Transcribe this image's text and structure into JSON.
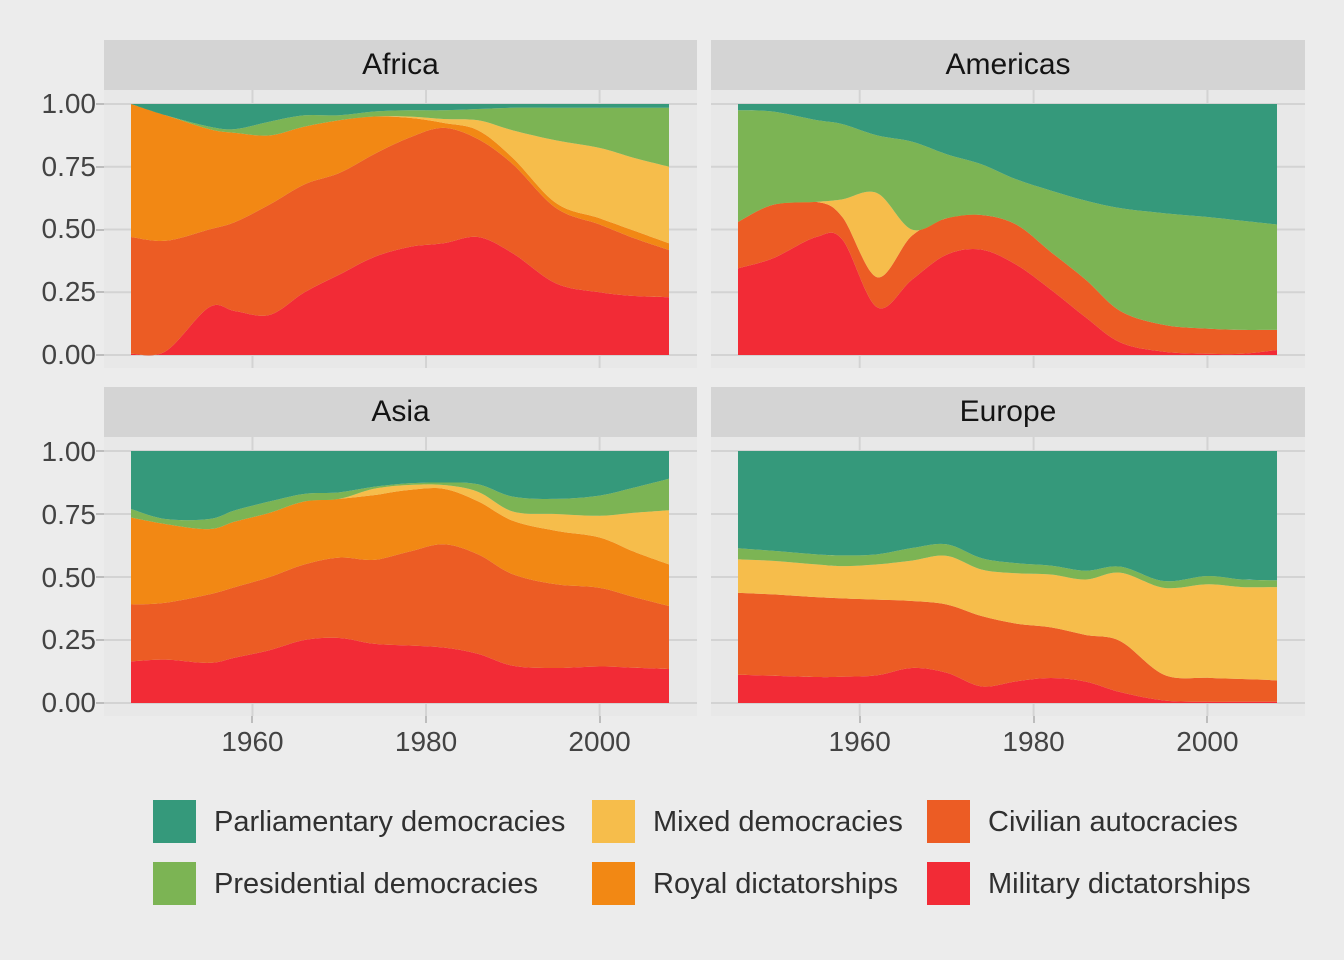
{
  "figure": {
    "background": "#ECECEC",
    "panel_background": "#E8E8E8",
    "gridline_color": "#D3D3D3",
    "strip_background": "#D4D4D4",
    "tick_color": "#BDBDBD"
  },
  "axes": {
    "x_tick_labels": [
      "1960",
      "1980",
      "2000"
    ],
    "x_tick_years": [
      1960,
      1980,
      2000
    ],
    "y_tick_labels": [
      "0.00",
      "0.25",
      "0.50",
      "0.75",
      "1.00"
    ],
    "y_tick_values": [
      0,
      0.25,
      0.5,
      0.75,
      1
    ]
  },
  "legend": {
    "items": [
      {
        "label": "Parliamentary democracies",
        "color": "#35997B"
      },
      {
        "label": "Presidential democracies",
        "color": "#7CB454"
      },
      {
        "label": "Mixed democracies",
        "color": "#F6BD4B"
      },
      {
        "label": "Royal dictatorships",
        "color": "#F28814"
      },
      {
        "label": "Civilian autocracies",
        "color": "#EC5C24"
      },
      {
        "label": "Military dictatorships",
        "color": "#F22B36"
      }
    ]
  },
  "chart_data": {
    "type": "area",
    "stacked": true,
    "normalized": true,
    "grid": "major-only",
    "legend_position": "bottom",
    "x_domain": [
      1946,
      2008
    ],
    "y_domain": [
      0,
      1
    ],
    "years": [
      1946,
      1950,
      1955,
      1958,
      1962,
      1966,
      1970,
      1974,
      1978,
      1982,
      1986,
      1990,
      1995,
      2000,
      2004,
      2008
    ],
    "stack_order_bottom_to_top": [
      "Military dictatorships",
      "Civilian autocracies",
      "Royal dictatorships",
      "Mixed democracies",
      "Presidential democracies",
      "Parliamentary democracies"
    ],
    "series_colors": {
      "Military dictatorships": "#F22B36",
      "Civilian autocracies": "#EC5C24",
      "Royal dictatorships": "#F28814",
      "Mixed democracies": "#F6BD4B",
      "Presidential democracies": "#7CB454",
      "Parliamentary democracies": "#35997B"
    },
    "facets": [
      {
        "title": "Africa",
        "series": {
          "Military dictatorships": [
            0.005,
            0.015,
            0.19,
            0.175,
            0.16,
            0.25,
            0.32,
            0.39,
            0.43,
            0.445,
            0.47,
            0.405,
            0.285,
            0.25,
            0.235,
            0.23
          ],
          "Civilian autocracies": [
            0.465,
            0.44,
            0.31,
            0.355,
            0.44,
            0.43,
            0.405,
            0.41,
            0.435,
            0.46,
            0.39,
            0.355,
            0.3,
            0.27,
            0.23,
            0.188
          ],
          "Royal dictatorships": [
            0.53,
            0.5,
            0.4,
            0.355,
            0.275,
            0.23,
            0.21,
            0.15,
            0.08,
            0.02,
            0.035,
            0.025,
            0.02,
            0.025,
            0.03,
            0.027
          ],
          "Mixed democracies": [
            0,
            0,
            0,
            0,
            0,
            0,
            0,
            0,
            0.005,
            0.015,
            0.04,
            0.11,
            0.25,
            0.28,
            0.29,
            0.305
          ],
          "Presidential democracies": [
            0,
            0,
            0.01,
            0.015,
            0.055,
            0.045,
            0.02,
            0.02,
            0.025,
            0.035,
            0.045,
            0.09,
            0.13,
            0.16,
            0.2,
            0.235
          ],
          "Parliamentary democracies": [
            0,
            0.045,
            0.09,
            0.1,
            0.07,
            0.045,
            0.045,
            0.03,
            0.025,
            0.025,
            0.02,
            0.015,
            0.015,
            0.015,
            0.015,
            0.015
          ]
        }
      },
      {
        "title": "Americas",
        "series": {
          "Military dictatorships": [
            0.345,
            0.385,
            0.47,
            0.46,
            0.19,
            0.3,
            0.4,
            0.42,
            0.36,
            0.26,
            0.15,
            0.05,
            0.013,
            0.005,
            0.005,
            0.02
          ],
          "Civilian autocracies": [
            0.185,
            0.213,
            0.14,
            0.09,
            0.12,
            0.175,
            0.145,
            0.138,
            0.16,
            0.15,
            0.15,
            0.125,
            0.107,
            0.1,
            0.095,
            0.08
          ],
          "Royal dictatorships": [
            0,
            0,
            0,
            0,
            0,
            0,
            0,
            0,
            0,
            0,
            0,
            0,
            0,
            0,
            0,
            0
          ],
          "Mixed democracies": [
            0,
            0,
            0,
            0.07,
            0.335,
            0.025,
            0,
            0,
            0,
            0,
            0,
            0,
            0,
            0,
            0,
            0
          ],
          "Presidential democracies": [
            0.445,
            0.372,
            0.326,
            0.3,
            0.23,
            0.35,
            0.255,
            0.202,
            0.18,
            0.245,
            0.315,
            0.41,
            0.445,
            0.445,
            0.435,
            0.42
          ],
          "Parliamentary democracies": [
            0.025,
            0.03,
            0.064,
            0.08,
            0.125,
            0.15,
            0.2,
            0.24,
            0.3,
            0.345,
            0.385,
            0.415,
            0.435,
            0.45,
            0.465,
            0.48
          ]
        }
      },
      {
        "title": "Asia",
        "series": {
          "Military dictatorships": [
            0.165,
            0.172,
            0.159,
            0.18,
            0.21,
            0.25,
            0.258,
            0.235,
            0.228,
            0.22,
            0.195,
            0.148,
            0.139,
            0.145,
            0.14,
            0.135
          ],
          "Civilian autocracies": [
            0.226,
            0.226,
            0.272,
            0.28,
            0.29,
            0.3,
            0.319,
            0.333,
            0.372,
            0.41,
            0.395,
            0.363,
            0.332,
            0.312,
            0.28,
            0.25
          ],
          "Royal dictatorships": [
            0.345,
            0.312,
            0.259,
            0.26,
            0.255,
            0.25,
            0.233,
            0.257,
            0.245,
            0.22,
            0.21,
            0.212,
            0.212,
            0.2,
            0.18,
            0.165
          ],
          "Mixed democracies": [
            0,
            0,
            0,
            0,
            0,
            0,
            0,
            0.025,
            0.02,
            0.015,
            0.038,
            0.037,
            0.067,
            0.086,
            0.155,
            0.215
          ],
          "Presidential democracies": [
            0.034,
            0.02,
            0.04,
            0.045,
            0.045,
            0.03,
            0.026,
            0.008,
            0.007,
            0.01,
            0.03,
            0.059,
            0.06,
            0.08,
            0.1,
            0.125
          ],
          "Parliamentary democracies": [
            0.23,
            0.27,
            0.27,
            0.235,
            0.2,
            0.17,
            0.164,
            0.142,
            0.128,
            0.125,
            0.132,
            0.181,
            0.19,
            0.177,
            0.145,
            0.11
          ]
        }
      },
      {
        "title": "Europe",
        "series": {
          "Military dictatorships": [
            0.112,
            0.108,
            0.103,
            0.104,
            0.11,
            0.139,
            0.12,
            0.066,
            0.086,
            0.099,
            0.085,
            0.043,
            0.01,
            0.005,
            0.005,
            0.005
          ],
          "Civilian autocracies": [
            0.325,
            0.323,
            0.317,
            0.311,
            0.3,
            0.266,
            0.271,
            0.279,
            0.229,
            0.201,
            0.185,
            0.202,
            0.102,
            0.095,
            0.09,
            0.085
          ],
          "Royal dictatorships": [
            0,
            0,
            0,
            0,
            0,
            0,
            0,
            0,
            0,
            0,
            0,
            0,
            0,
            0,
            0,
            0
          ],
          "Mixed democracies": [
            0.133,
            0.133,
            0.13,
            0.128,
            0.14,
            0.16,
            0.193,
            0.185,
            0.2,
            0.21,
            0.22,
            0.272,
            0.345,
            0.371,
            0.365,
            0.37
          ],
          "Presidential democracies": [
            0.044,
            0.04,
            0.04,
            0.043,
            0.04,
            0.05,
            0.046,
            0.045,
            0.04,
            0.035,
            0.035,
            0.024,
            0.027,
            0.033,
            0.03,
            0.027
          ],
          "Parliamentary democracies": [
            0.386,
            0.396,
            0.41,
            0.414,
            0.41,
            0.385,
            0.37,
            0.425,
            0.445,
            0.455,
            0.475,
            0.459,
            0.516,
            0.496,
            0.51,
            0.513
          ]
        }
      }
    ]
  }
}
